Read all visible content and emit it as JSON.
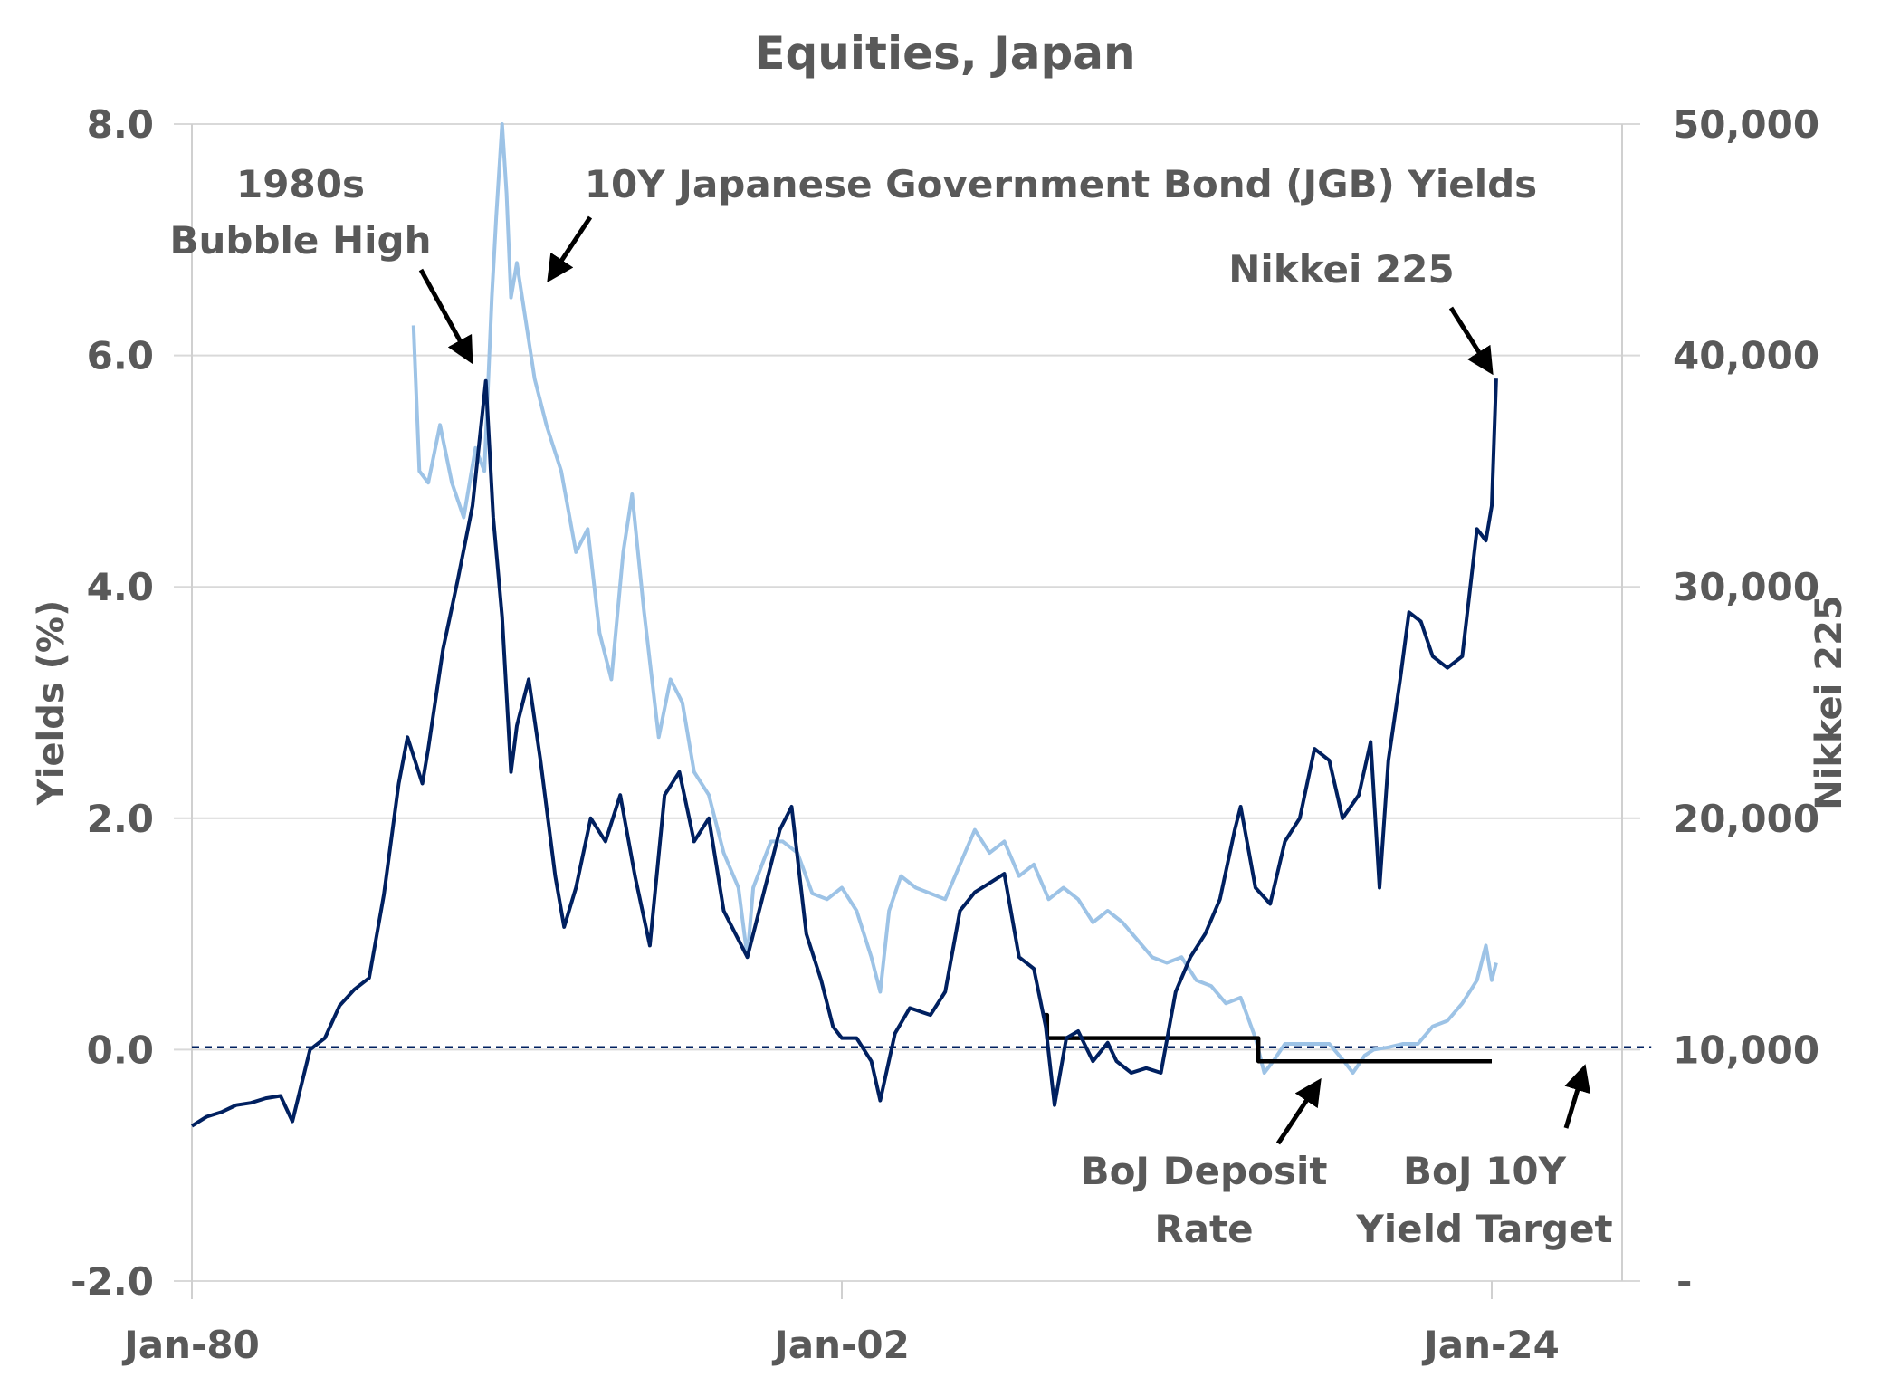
{
  "chart_data": {
    "type": "line",
    "title": "Equities, Japan",
    "xlabel": "",
    "ylabel_left": "Yields  (%)",
    "ylabel_right": "Nikkei  225",
    "x_ticks": [
      "Jan-80",
      "Jan-02",
      "Jan-24"
    ],
    "x_tick_years": [
      1980,
      2002,
      2024
    ],
    "x_range": [
      1980,
      2029.4
    ],
    "y_left_range": [
      -2.0,
      8.0
    ],
    "y_left_ticks": [
      "-2.0",
      "0.0",
      "2.0",
      "4.0",
      "6.0",
      "8.0"
    ],
    "y_left_tick_values": [
      -2,
      0,
      2,
      4,
      6,
      8
    ],
    "y_right_range": [
      0,
      50000
    ],
    "y_right_ticks": [
      "-",
      "10,000",
      "20,000",
      "30,000",
      "40,000",
      "50,000"
    ],
    "y_right_tick_values": [
      0,
      10000,
      20000,
      30000,
      40000,
      50000
    ],
    "grid": true,
    "series": [
      {
        "name": "Nikkei 225",
        "axis": "right",
        "color": "#002060",
        "x": [
          1980.0,
          1980.5,
          1981.0,
          1981.5,
          1982.0,
          1982.5,
          1983.0,
          1983.4,
          1984.0,
          1984.5,
          1985.0,
          1985.5,
          1986.0,
          1986.5,
          1987.0,
          1987.3,
          1987.8,
          1988.0,
          1988.5,
          1989.0,
          1989.5,
          1989.95,
          1990.2,
          1990.5,
          1990.8,
          1991.0,
          1991.4,
          1991.8,
          1992.3,
          1992.6,
          1993.0,
          1993.5,
          1994.0,
          1994.5,
          1995.0,
          1995.5,
          1996.0,
          1996.5,
          1997.0,
          1997.5,
          1998.0,
          1998.8,
          1999.3,
          1999.9,
          2000.3,
          2000.8,
          2001.3,
          2001.7,
          2002.0,
          2002.5,
          2003.0,
          2003.3,
          2003.8,
          2004.3,
          2005.0,
          2005.5,
          2006.0,
          2006.5,
          2007.0,
          2007.5,
          2008.0,
          2008.5,
          2008.9,
          2009.2,
          2009.6,
          2010.0,
          2010.5,
          2011.0,
          2011.3,
          2011.8,
          2012.3,
          2012.8,
          2013.3,
          2013.8,
          2014.3,
          2014.8,
          2015.3,
          2015.5,
          2016.0,
          2016.5,
          2017.0,
          2017.5,
          2018.0,
          2018.5,
          2018.95,
          2019.5,
          2019.9,
          2020.2,
          2020.5,
          2020.9,
          2021.2,
          2021.6,
          2022.0,
          2022.5,
          2023.0,
          2023.5,
          2023.8,
          2024.0,
          2024.15
        ],
        "values": [
          6700,
          7100,
          7300,
          7600,
          7700,
          7900,
          8000,
          6900,
          10000,
          10500,
          11900,
          12600,
          13100,
          16700,
          21500,
          23500,
          21500,
          23000,
          27300,
          30300,
          33500,
          38900,
          33000,
          28700,
          22000,
          24000,
          26000,
          22500,
          17500,
          15300,
          17000,
          20000,
          19000,
          21000,
          17500,
          14500,
          21000,
          22000,
          19000,
          20000,
          16000,
          14000,
          16500,
          19500,
          20500,
          15000,
          13000,
          11000,
          10500,
          10500,
          9500,
          7800,
          10700,
          11800,
          11500,
          12500,
          16000,
          16800,
          17200,
          17600,
          14000,
          13500,
          11000,
          7600,
          10500,
          10800,
          9500,
          10300,
          9500,
          9000,
          9200,
          9000,
          12500,
          14000,
          15000,
          16500,
          19500,
          20500,
          17000,
          16300,
          19000,
          20000,
          23000,
          22500,
          20000,
          21000,
          23300,
          17000,
          22500,
          26000,
          28900,
          28500,
          27000,
          26500,
          27000,
          32500,
          32000,
          33500,
          39000
        ]
      },
      {
        "name": "10Y Japanese Government Bond (JGB) Yields",
        "axis": "left",
        "color": "#9DC3E6",
        "x": [
          1987.5,
          1987.7,
          1988.0,
          1988.4,
          1988.8,
          1989.2,
          1989.6,
          1989.9,
          1990.15,
          1990.3,
          1990.5,
          1990.65,
          1990.8,
          1991.0,
          1991.3,
          1991.6,
          1992.0,
          1992.5,
          1993.0,
          1993.4,
          1993.8,
          1994.2,
          1994.6,
          1994.9,
          1995.3,
          1995.8,
          1996.2,
          1996.6,
          1997.0,
          1997.5,
          1998.0,
          1998.5,
          1998.8,
          1999.0,
          1999.3,
          1999.6,
          2000.0,
          2000.5,
          2001.0,
          2001.5,
          2002.0,
          2002.5,
          2003.0,
          2003.3,
          2003.6,
          2004.0,
          2004.5,
          2005.0,
          2005.5,
          2006.0,
          2006.5,
          2007.0,
          2007.5,
          2008.0,
          2008.5,
          2009.0,
          2009.5,
          2010.0,
          2010.5,
          2011.0,
          2011.5,
          2012.0,
          2012.5,
          2013.0,
          2013.5,
          2014.0,
          2014.5,
          2015.0,
          2015.5,
          2016.0,
          2016.3,
          2016.6,
          2017.0,
          2017.5,
          2018.0,
          2018.5,
          2019.0,
          2019.3,
          2019.7,
          2020.0,
          2020.5,
          2021.0,
          2021.5,
          2022.0,
          2022.5,
          2023.0,
          2023.5,
          2023.8,
          2024.0,
          2024.15
        ],
        "values": [
          6.26,
          5.0,
          4.9,
          5.4,
          4.9,
          4.6,
          5.2,
          5.0,
          6.5,
          7.2,
          8.0,
          7.4,
          6.5,
          6.8,
          6.3,
          5.8,
          5.4,
          5.0,
          4.3,
          4.5,
          3.6,
          3.2,
          4.3,
          4.8,
          3.8,
          2.7,
          3.2,
          3.0,
          2.4,
          2.2,
          1.7,
          1.4,
          0.8,
          1.4,
          1.6,
          1.8,
          1.8,
          1.7,
          1.35,
          1.3,
          1.4,
          1.2,
          0.8,
          0.5,
          1.2,
          1.5,
          1.4,
          1.35,
          1.3,
          1.6,
          1.9,
          1.7,
          1.8,
          1.5,
          1.6,
          1.3,
          1.4,
          1.3,
          1.1,
          1.2,
          1.1,
          0.95,
          0.8,
          0.75,
          0.8,
          0.6,
          0.55,
          0.4,
          0.45,
          0.1,
          -0.2,
          -0.1,
          0.05,
          0.05,
          0.05,
          0.05,
          -0.1,
          -0.2,
          -0.05,
          0.0,
          0.02,
          0.05,
          0.05,
          0.2,
          0.25,
          0.4,
          0.6,
          0.9,
          0.6,
          0.75
        ]
      },
      {
        "name": "BoJ Deposit Rate",
        "axis": "left",
        "color": "#000000",
        "step": true,
        "x": [
          2008.85,
          2008.95,
          2016.1,
          2016.1,
          2024.0
        ],
        "values": [
          0.3,
          0.1,
          0.1,
          -0.1,
          -0.1
        ]
      },
      {
        "name": "BoJ 10Y Yield Target",
        "axis": "left",
        "color": "#002060",
        "dashed": true,
        "x": [
          1980.0,
          2029.4
        ],
        "values": [
          0.02,
          0.02
        ]
      }
    ],
    "annotations": [
      {
        "id": "bubble",
        "lines": [
          "1980s",
          "Bubble High"
        ],
        "points_to_series": "Nikkei 225",
        "points_to_x": 1989.5
      },
      {
        "id": "jgb",
        "lines": [
          "10Y Japanese Government Bond (JGB) Yields"
        ],
        "points_to_series": "10Y Japanese Government Bond (JGB) Yields",
        "points_to_x": 1991.3
      },
      {
        "id": "nikkei",
        "lines": [
          "Nikkei  225"
        ],
        "points_to_series": "Nikkei 225",
        "points_to_x": 2024.0
      },
      {
        "id": "deposit",
        "lines": [
          "BoJ Deposit",
          "Rate"
        ],
        "points_to_series": "BoJ Deposit Rate",
        "points_to_x": 2018.0
      },
      {
        "id": "ycc",
        "lines": [
          "BoJ 10Y",
          "Yield Target"
        ],
        "points_to_series": "BoJ 10Y Yield Target",
        "points_to_x": 2027.7
      }
    ]
  }
}
